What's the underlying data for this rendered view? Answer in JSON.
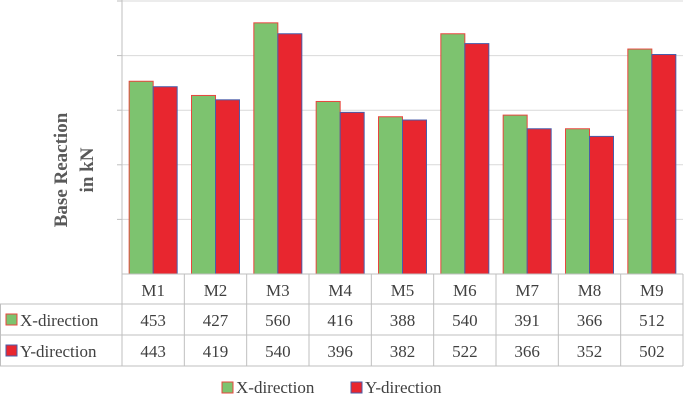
{
  "chart_data": {
    "type": "bar",
    "title": "",
    "ylabel": "Base Reaction in kN",
    "ylabel_lines": [
      "Base Reaction",
      "in kN"
    ],
    "xlabel": "",
    "categories": [
      "M1",
      "M2",
      "M3",
      "M4",
      "M5",
      "M6",
      "M7",
      "M8",
      "M9"
    ],
    "series": [
      {
        "name": "X-direction",
        "values": [
          453,
          427,
          560,
          416,
          388,
          540,
          391,
          366,
          512
        ],
        "fill": "#7dc36f",
        "stroke": "#e8463e"
      },
      {
        "name": "Y-direction",
        "values": [
          443,
          419,
          540,
          396,
          382,
          522,
          366,
          352,
          502
        ],
        "fill": "#e8262f",
        "stroke": "#4a5ca8"
      }
    ],
    "ylim": [
      100,
      600
    ],
    "gridlines": [
      200,
      300,
      400,
      500,
      600
    ],
    "grid": true,
    "y_tick_labels_shown": false,
    "data_table": true,
    "legend_position": "bottom"
  }
}
